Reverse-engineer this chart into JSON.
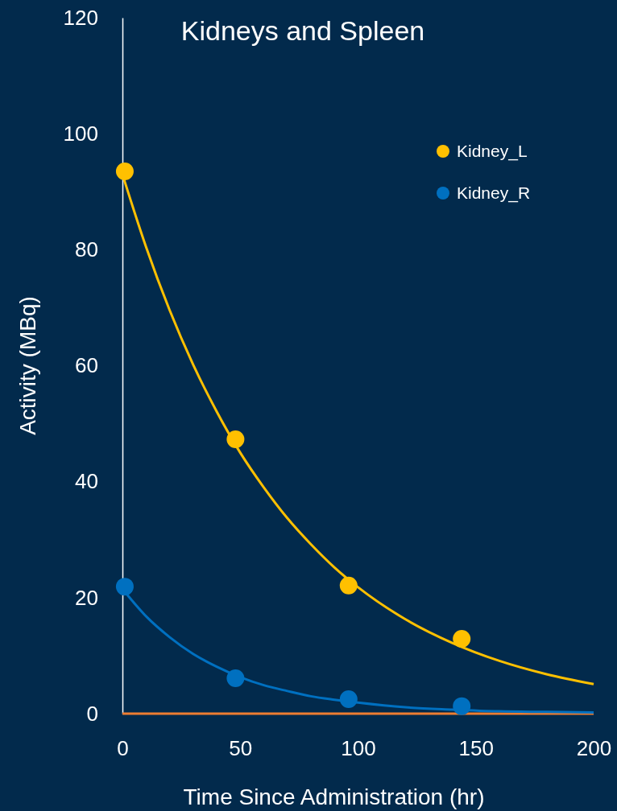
{
  "chart_data": {
    "type": "scatter",
    "title": "Kidneys and Spleen",
    "xlabel": "Time Since Administration (hr)",
    "ylabel": "Activity (MBq)",
    "xlim": [
      0,
      200
    ],
    "ylim": [
      0,
      120
    ],
    "xticks": [
      0,
      50,
      100,
      150,
      200
    ],
    "yticks": [
      0,
      20,
      40,
      60,
      80,
      100,
      120
    ],
    "grid": false,
    "legend": "top right",
    "marker": "circle",
    "series": [
      {
        "type": "line",
        "marker": "none",
        "color": "#ed7d31",
        "x": [
          0,
          200
        ],
        "values": [
          0,
          0
        ]
      },
      {
        "type": "line",
        "marker": "none",
        "color": "#ffc000",
        "x": [
          0,
          10,
          20,
          30,
          40,
          50,
          60,
          70,
          80,
          90,
          100,
          120,
          140,
          160,
          180,
          200
        ],
        "values": [
          93,
          80.5,
          69.6,
          60.2,
          52.1,
          45,
          39,
          33.7,
          29.2,
          25.2,
          21.8,
          16.3,
          12.2,
          9.1,
          6.8,
          5.1
        ]
      },
      {
        "type": "line",
        "marker": "none",
        "color": "#0070c0",
        "x": [
          0,
          10,
          20,
          30,
          40,
          50,
          60,
          70,
          80,
          90,
          100,
          120,
          140,
          160,
          180,
          200
        ],
        "values": [
          21.5,
          16.8,
          13.2,
          10.3,
          8.1,
          6.3,
          4.9,
          3.9,
          3,
          2.4,
          1.9,
          1.1,
          0.7,
          0.4,
          0.3,
          0.2
        ]
      },
      {
        "name": "Kidney_L",
        "color": "#ffc000",
        "x": [
          1,
          48,
          96,
          144
        ],
        "values": [
          93.5,
          47.3,
          22.1,
          12.9
        ]
      },
      {
        "name": "Kidney_R",
        "color": "#0070c0",
        "x": [
          1,
          48,
          96,
          144
        ],
        "values": [
          21.9,
          6.1,
          2.5,
          1.3
        ]
      }
    ]
  }
}
